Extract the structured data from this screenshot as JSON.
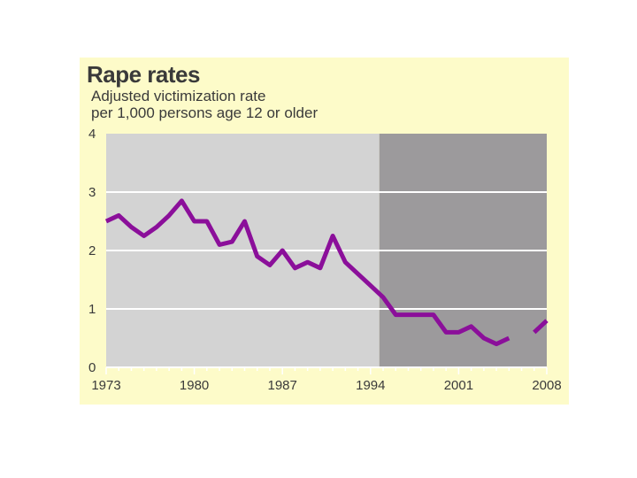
{
  "chart_data": {
    "type": "line",
    "title": "Rape rates",
    "subtitle_lines": [
      "Adjusted victimization rate",
      "per 1,000 persons age 12 or older"
    ],
    "xlabel": "",
    "ylabel": "",
    "xlim": [
      1973,
      2008
    ],
    "ylim": [
      0,
      4
    ],
    "x_ticks": [
      "1973",
      "1980",
      "1987",
      "1994",
      "2001",
      "2008"
    ],
    "y_ticks": [
      "0",
      "1",
      "2",
      "3",
      "4"
    ],
    "shaded_region_start": 1995,
    "grid": true,
    "series": [
      {
        "name": "Rape rate",
        "color": "#8b0f9a",
        "segments": [
          {
            "x": [
              1973,
              1974,
              1975,
              1976,
              1977,
              1978,
              1979,
              1980,
              1981,
              1982,
              1983,
              1984,
              1985,
              1986,
              1987,
              1988,
              1989,
              1990,
              1991,
              1992,
              1993,
              1994,
              1995,
              1996,
              1997,
              1998,
              1999,
              2000,
              2001,
              2002,
              2003,
              2004,
              2005
            ],
            "values": [
              2.5,
              2.6,
              2.4,
              2.25,
              2.4,
              2.6,
              2.85,
              2.5,
              2.5,
              2.1,
              2.15,
              2.5,
              1.9,
              1.75,
              2.0,
              1.7,
              1.8,
              1.7,
              2.25,
              1.8,
              1.6,
              1.4,
              1.2,
              0.9,
              0.9,
              0.9,
              0.9,
              0.6,
              0.6,
              0.7,
              0.5,
              0.4,
              0.5
            ]
          },
          {
            "x": [
              2007,
              2008
            ],
            "values": [
              0.6,
              0.8
            ]
          }
        ]
      }
    ]
  },
  "colors": {
    "panel_background": "#fdfbc9",
    "plot_light": "#d3d3d3",
    "plot_dark": "#9c9a9c",
    "line": "#8b0f9a"
  }
}
